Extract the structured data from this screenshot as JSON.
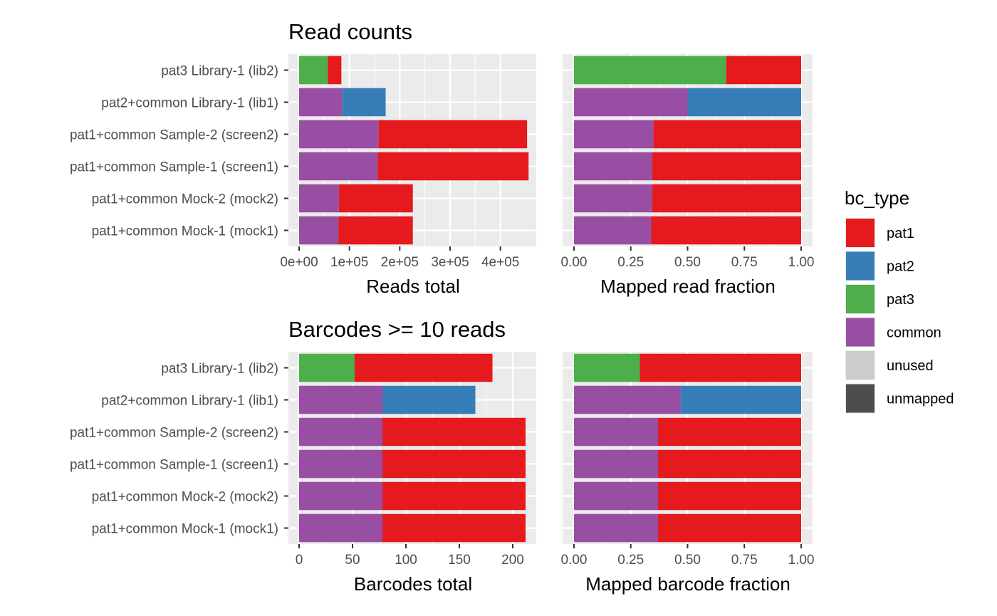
{
  "categories": [
    "pat3 Library-1 (lib2)",
    "pat2+common Library-1 (lib1)",
    "pat1+common Sample-2 (screen2)",
    "pat1+common Sample-1 (screen1)",
    "pat1+common Mock-2 (mock2)",
    "pat1+common Mock-1 (mock1)"
  ],
  "colors": {
    "pat1": "#E41A1C",
    "pat2": "#377EB8",
    "pat3": "#4DAF4A",
    "common": "#984EA3",
    "unused": "#CCCCCC",
    "unmapped": "#4D4D4D",
    "panel_bg": "#EBEBEB",
    "grid": "#FFFFFF"
  },
  "legend": {
    "title": "bc_type",
    "items": [
      {
        "key": "pat1",
        "label": "pat1"
      },
      {
        "key": "pat2",
        "label": "pat2"
      },
      {
        "key": "pat3",
        "label": "pat3"
      },
      {
        "key": "common",
        "label": "common"
      },
      {
        "key": "unused",
        "label": "unused"
      },
      {
        "key": "unmapped",
        "label": "unmapped"
      }
    ]
  },
  "chart_data": [
    {
      "type": "bar",
      "orientation": "horizontal",
      "stacked": true,
      "title": "Read counts",
      "xlabel": "Reads total",
      "xlim": [
        0,
        450000
      ],
      "xticks": [
        0,
        100000,
        200000,
        300000,
        400000
      ],
      "xtick_labels": [
        "0e+00",
        "1e+05",
        "2e+05",
        "3e+05",
        "4e+05"
      ],
      "categories": [
        "pat3 Library-1 (lib2)",
        "pat2+common Library-1 (lib1)",
        "pat1+common Sample-2 (screen2)",
        "pat1+common Sample-1 (screen1)",
        "pat1+common Mock-2 (mock2)",
        "pat1+common Mock-1 (mock1)"
      ],
      "series": [
        {
          "name": "common",
          "values": [
            0,
            86000,
            158000,
            156000,
            79000,
            78000
          ]
        },
        {
          "name": "pat3",
          "values": [
            57000,
            0,
            0,
            0,
            0,
            0
          ]
        },
        {
          "name": "pat2",
          "values": [
            0,
            86000,
            0,
            0,
            0,
            0
          ]
        },
        {
          "name": "pat1",
          "values": [
            27000,
            0,
            295000,
            300000,
            147000,
            148000
          ]
        }
      ],
      "series_order": [
        "common",
        "pat3",
        "pat2",
        "pat1"
      ]
    },
    {
      "type": "bar",
      "orientation": "horizontal",
      "stacked": true,
      "title": "",
      "xlabel": "Mapped read fraction",
      "xlim": [
        0,
        1
      ],
      "xticks": [
        0,
        0.25,
        0.5,
        0.75,
        1
      ],
      "xtick_labels": [
        "0.00",
        "0.25",
        "0.50",
        "0.75",
        "1.00"
      ],
      "categories": [
        "pat3 Library-1 (lib2)",
        "pat2+common Library-1 (lib1)",
        "pat1+common Sample-2 (screen2)",
        "pat1+common Sample-1 (screen1)",
        "pat1+common Mock-2 (mock2)",
        "pat1+common Mock-1 (mock1)"
      ],
      "series": [
        {
          "name": "common",
          "values": [
            0,
            0.5,
            0.35,
            0.345,
            0.345,
            0.34
          ]
        },
        {
          "name": "pat3",
          "values": [
            0.67,
            0,
            0,
            0,
            0,
            0
          ]
        },
        {
          "name": "pat2",
          "values": [
            0,
            0.5,
            0,
            0,
            0,
            0
          ]
        },
        {
          "name": "pat1",
          "values": [
            0.33,
            0,
            0.65,
            0.655,
            0.655,
            0.66
          ]
        }
      ],
      "series_order": [
        "common",
        "pat3",
        "pat2",
        "pat1"
      ]
    },
    {
      "type": "bar",
      "orientation": "horizontal",
      "stacked": true,
      "title": "Barcodes >= 10 reads",
      "xlabel": "Barcodes total",
      "xlim": [
        0,
        212
      ],
      "xticks": [
        0,
        50,
        100,
        150,
        200
      ],
      "xtick_labels": [
        "0",
        "50",
        "100",
        "150",
        "200"
      ],
      "categories": [
        "pat3 Library-1 (lib2)",
        "pat2+common Library-1 (lib1)",
        "pat1+common Sample-2 (screen2)",
        "pat1+common Sample-1 (screen1)",
        "pat1+common Mock-2 (mock2)",
        "pat1+common Mock-1 (mock1)"
      ],
      "series": [
        {
          "name": "common",
          "values": [
            0,
            78,
            78,
            78,
            78,
            78
          ]
        },
        {
          "name": "pat3",
          "values": [
            52,
            0,
            0,
            0,
            0,
            0
          ]
        },
        {
          "name": "pat2",
          "values": [
            0,
            87,
            0,
            0,
            0,
            0
          ]
        },
        {
          "name": "pat1",
          "values": [
            129,
            0,
            134,
            134,
            134,
            134
          ]
        }
      ],
      "series_order": [
        "common",
        "pat3",
        "pat2",
        "pat1"
      ]
    },
    {
      "type": "bar",
      "orientation": "horizontal",
      "stacked": true,
      "title": "",
      "xlabel": "Mapped barcode fraction",
      "xlim": [
        0,
        1
      ],
      "xticks": [
        0,
        0.25,
        0.5,
        0.75,
        1
      ],
      "xtick_labels": [
        "0.00",
        "0.25",
        "0.50",
        "0.75",
        "1.00"
      ],
      "categories": [
        "pat3 Library-1 (lib2)",
        "pat2+common Library-1 (lib1)",
        "pat1+common Sample-2 (screen2)",
        "pat1+common Sample-1 (screen1)",
        "pat1+common Mock-2 (mock2)",
        "pat1+common Mock-1 (mock1)"
      ],
      "series": [
        {
          "name": "common",
          "values": [
            0,
            0.47,
            0.37,
            0.37,
            0.37,
            0.37
          ]
        },
        {
          "name": "pat3",
          "values": [
            0.29,
            0,
            0,
            0,
            0,
            0
          ]
        },
        {
          "name": "pat2",
          "values": [
            0,
            0.53,
            0,
            0,
            0,
            0
          ]
        },
        {
          "name": "pat1",
          "values": [
            0.71,
            0,
            0.63,
            0.63,
            0.63,
            0.63
          ]
        }
      ],
      "series_order": [
        "common",
        "pat3",
        "pat2",
        "pat1"
      ]
    }
  ]
}
